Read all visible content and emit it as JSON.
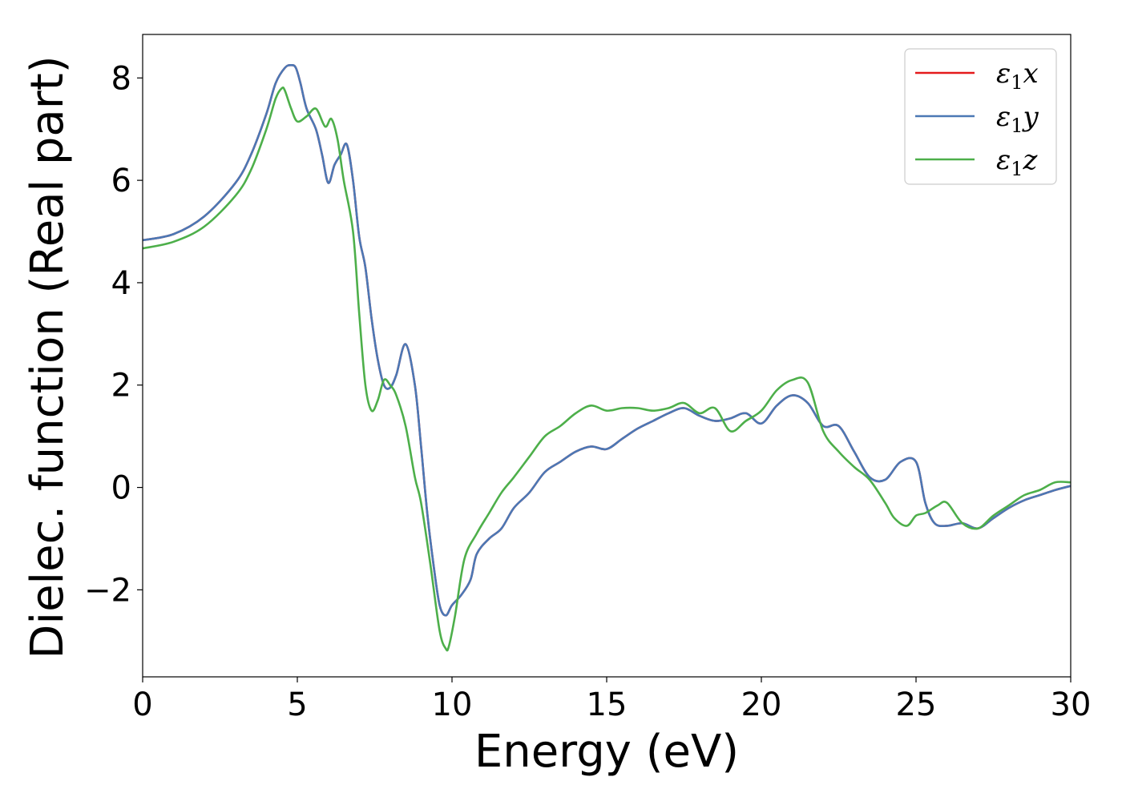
{
  "chart_data": {
    "type": "line",
    "title": "",
    "xlabel": "Energy (eV)",
    "ylabel": "Dielec. function (Real part)",
    "xlim": [
      0,
      30
    ],
    "ylim": [
      -3.7,
      8.85
    ],
    "xticks": [
      0,
      5,
      10,
      15,
      20,
      25,
      30
    ],
    "yticks": [
      -2,
      0,
      2,
      4,
      6,
      8
    ],
    "xtick_labels": [
      "0",
      "5",
      "10",
      "15",
      "20",
      "25",
      "30"
    ],
    "ytick_labels": [
      "−2",
      "0",
      "2",
      "4",
      "6",
      "8"
    ],
    "grid": false,
    "legend_position": "top-right",
    "series": [
      {
        "name": "ε₁x",
        "legend_base": "ε",
        "legend_sub": "1",
        "legend_var": "x",
        "color": "#e41a1c",
        "x": [
          0,
          1,
          2,
          3,
          3.5,
          4,
          4.3,
          4.6,
          4.8,
          4.95,
          5.1,
          5.3,
          5.6,
          5.8,
          6.0,
          6.2,
          6.4,
          6.6,
          6.8,
          7.0,
          7.2,
          7.4,
          7.6,
          7.8,
          8.0,
          8.2,
          8.5,
          8.8,
          9.0,
          9.2,
          9.4,
          9.6,
          9.8,
          10.0,
          10.3,
          10.6,
          10.8,
          11.2,
          11.6,
          12.0,
          12.5,
          13.0,
          13.5,
          14.0,
          14.5,
          15.0,
          15.5,
          16.0,
          16.5,
          17.0,
          17.5,
          18.0,
          18.5,
          19.0,
          19.5,
          20.0,
          20.5,
          21.0,
          21.5,
          22.0,
          22.5,
          23.0,
          23.5,
          24.0,
          24.5,
          25.0,
          25.3,
          25.6,
          26.0,
          26.5,
          27.0,
          27.5,
          28.0,
          28.5,
          29.0,
          29.5,
          30.0
        ],
        "y": [
          4.83,
          4.95,
          5.3,
          5.95,
          6.5,
          7.3,
          7.9,
          8.2,
          8.25,
          8.2,
          7.9,
          7.4,
          7.0,
          6.5,
          5.95,
          6.3,
          6.5,
          6.7,
          6.0,
          4.9,
          4.3,
          3.3,
          2.5,
          2.0,
          1.95,
          2.2,
          2.8,
          2.0,
          0.8,
          -0.5,
          -1.5,
          -2.3,
          -2.5,
          -2.3,
          -2.1,
          -1.8,
          -1.3,
          -1.0,
          -0.8,
          -0.4,
          -0.1,
          0.3,
          0.5,
          0.7,
          0.8,
          0.75,
          0.95,
          1.15,
          1.3,
          1.45,
          1.55,
          1.4,
          1.3,
          1.35,
          1.45,
          1.25,
          1.6,
          1.8,
          1.65,
          1.2,
          1.2,
          0.7,
          0.2,
          0.15,
          0.5,
          0.5,
          -0.3,
          -0.7,
          -0.75,
          -0.7,
          -0.8,
          -0.6,
          -0.4,
          -0.25,
          -0.15,
          -0.05,
          0.03
        ]
      },
      {
        "name": "ε₁y",
        "legend_base": "ε",
        "legend_sub": "1",
        "legend_var": "y",
        "color": "#4b78b5",
        "x": [
          0,
          1,
          2,
          3,
          3.5,
          4,
          4.3,
          4.6,
          4.8,
          4.95,
          5.1,
          5.3,
          5.6,
          5.8,
          6.0,
          6.2,
          6.4,
          6.6,
          6.8,
          7.0,
          7.2,
          7.4,
          7.6,
          7.8,
          8.0,
          8.2,
          8.5,
          8.8,
          9.0,
          9.2,
          9.4,
          9.6,
          9.8,
          10.0,
          10.3,
          10.6,
          10.8,
          11.2,
          11.6,
          12.0,
          12.5,
          13.0,
          13.5,
          14.0,
          14.5,
          15.0,
          15.5,
          16.0,
          16.5,
          17.0,
          17.5,
          18.0,
          18.5,
          19.0,
          19.5,
          20.0,
          20.5,
          21.0,
          21.5,
          22.0,
          22.5,
          23.0,
          23.5,
          24.0,
          24.5,
          25.0,
          25.3,
          25.6,
          26.0,
          26.5,
          27.0,
          27.5,
          28.0,
          28.5,
          29.0,
          29.5,
          30.0
        ],
        "y": [
          4.83,
          4.95,
          5.3,
          5.95,
          6.5,
          7.3,
          7.9,
          8.2,
          8.25,
          8.2,
          7.9,
          7.4,
          7.0,
          6.5,
          5.95,
          6.3,
          6.5,
          6.7,
          6.0,
          4.9,
          4.3,
          3.3,
          2.5,
          2.0,
          1.95,
          2.2,
          2.8,
          2.0,
          0.8,
          -0.5,
          -1.5,
          -2.3,
          -2.5,
          -2.3,
          -2.1,
          -1.8,
          -1.3,
          -1.0,
          -0.8,
          -0.4,
          -0.1,
          0.3,
          0.5,
          0.7,
          0.8,
          0.75,
          0.95,
          1.15,
          1.3,
          1.45,
          1.55,
          1.4,
          1.3,
          1.35,
          1.45,
          1.25,
          1.6,
          1.8,
          1.65,
          1.2,
          1.2,
          0.7,
          0.2,
          0.15,
          0.5,
          0.5,
          -0.3,
          -0.7,
          -0.75,
          -0.7,
          -0.8,
          -0.6,
          -0.4,
          -0.25,
          -0.15,
          -0.05,
          0.03
        ]
      },
      {
        "name": "ε₁z",
        "legend_base": "ε",
        "legend_sub": "1",
        "legend_var": "z",
        "color": "#4daf4a",
        "x": [
          0,
          1,
          2,
          3,
          3.5,
          4,
          4.3,
          4.5,
          4.6,
          4.8,
          5.0,
          5.3,
          5.6,
          5.9,
          6.1,
          6.3,
          6.5,
          6.8,
          7.0,
          7.2,
          7.4,
          7.6,
          7.8,
          8.0,
          8.2,
          8.5,
          8.8,
          9.0,
          9.3,
          9.6,
          9.8,
          9.9,
          10.1,
          10.4,
          10.8,
          11.2,
          11.6,
          12.0,
          12.5,
          13.0,
          13.5,
          14.0,
          14.5,
          15.0,
          15.5,
          16.0,
          16.5,
          17.0,
          17.5,
          18.0,
          18.5,
          19.0,
          19.5,
          20.0,
          20.5,
          21.0,
          21.5,
          22.0,
          22.5,
          23.0,
          23.5,
          24.0,
          24.3,
          24.7,
          25.0,
          25.3,
          25.7,
          26.0,
          26.5,
          27.0,
          27.5,
          28.0,
          28.5,
          29.0,
          29.5,
          30.0
        ],
        "y": [
          4.67,
          4.8,
          5.1,
          5.7,
          6.2,
          7.0,
          7.6,
          7.8,
          7.75,
          7.4,
          7.15,
          7.25,
          7.4,
          7.05,
          7.2,
          6.8,
          6.0,
          5.0,
          3.4,
          2.0,
          1.5,
          1.7,
          2.1,
          2.0,
          1.8,
          1.2,
          0.2,
          -0.3,
          -1.5,
          -2.8,
          -3.15,
          -3.1,
          -2.5,
          -1.4,
          -0.9,
          -0.5,
          -0.1,
          0.2,
          0.6,
          1.0,
          1.2,
          1.45,
          1.6,
          1.5,
          1.55,
          1.55,
          1.5,
          1.55,
          1.65,
          1.45,
          1.55,
          1.1,
          1.3,
          1.5,
          1.9,
          2.1,
          2.05,
          1.1,
          0.7,
          0.4,
          0.15,
          -0.3,
          -0.6,
          -0.75,
          -0.55,
          -0.5,
          -0.35,
          -0.3,
          -0.7,
          -0.8,
          -0.55,
          -0.35,
          -0.15,
          -0.05,
          0.1,
          0.1
        ]
      }
    ]
  }
}
